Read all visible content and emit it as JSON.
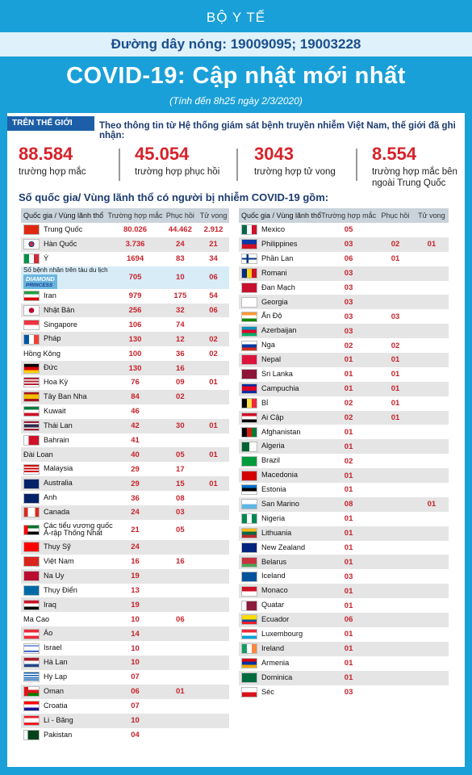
{
  "header": {
    "ministry": "BỘ Y TẾ",
    "hotline": "Đường dây nóng: 19009095; 19003228",
    "title": "COVID-19: Cập nhật mới nhất",
    "subtitle": "(Tính đến 8h25 ngày 2/3/2020)"
  },
  "world": {
    "tag": "TRÊN THẾ GIỚI",
    "intro": "Theo thông tin từ Hệ thống giám sát bệnh truyền nhiễm Việt Nam, thế giới đã ghi nhận:",
    "stats": [
      {
        "value": "88.584",
        "label": "trường hợp mắc"
      },
      {
        "value": "45.054",
        "label": "trường hợp  phục hồi"
      },
      {
        "value": "3043",
        "label": "trường hợp  tử vong"
      },
      {
        "value": "8.554",
        "label": "trường hợp  mắc bên ngoài Trung Quốc"
      }
    ],
    "countries_title": "Số quốc gia/ Vùng lãnh thổ có người bị nhiễm COVID-19 gồm:"
  },
  "table_headers": {
    "country": "Quốc gia / Vùng lãnh thổ",
    "cases": "Trường hợp mắc",
    "recovered": "Phục hồi",
    "deaths": "Tử vong"
  },
  "ship_logo": {
    "line1": "DIAMOND",
    "line2": "PRINCESS"
  },
  "colors": {
    "background": "#1aa0d8",
    "accent": "#d7222a",
    "header_band": "#dff1fa",
    "title_blue": "#1b3b6f"
  },
  "left_table": [
    {
      "name": "Trung Quốc",
      "cases": "80.026",
      "recovered": "44.462",
      "deaths": "2.912",
      "flag": "cn"
    },
    {
      "name": "Hàn Quốc",
      "cases": "3.736",
      "recovered": "24",
      "deaths": "21",
      "flag": "kr"
    },
    {
      "name": "Ý",
      "cases": "1694",
      "recovered": "83",
      "deaths": "34",
      "flag": "it"
    },
    {
      "name": "Số bệnh nhân trên tàu du lịch",
      "cases": "705",
      "recovered": "10",
      "deaths": "06",
      "flag": "ship"
    },
    {
      "name": "Iran",
      "cases": "979",
      "recovered": "175",
      "deaths": "54",
      "flag": "ir"
    },
    {
      "name": "Nhật Bản",
      "cases": "256",
      "recovered": "32",
      "deaths": "06",
      "flag": "jp"
    },
    {
      "name": "Singapore",
      "cases": "106",
      "recovered": "74",
      "deaths": "",
      "flag": "sg"
    },
    {
      "name": "Pháp",
      "cases": "130",
      "recovered": "12",
      "deaths": "02",
      "flag": "fr"
    },
    {
      "name": "Hồng Kông",
      "cases": "100",
      "recovered": "36",
      "deaths": "02",
      "flag": "none"
    },
    {
      "name": "Đức",
      "cases": "130",
      "recovered": "16",
      "deaths": "",
      "flag": "de"
    },
    {
      "name": "Hoa Kỳ",
      "cases": "76",
      "recovered": "09",
      "deaths": "01",
      "flag": "us"
    },
    {
      "name": "Tây Ban Nha",
      "cases": "84",
      "recovered": "02",
      "deaths": "",
      "flag": "es"
    },
    {
      "name": "Kuwait",
      "cases": "46",
      "recovered": "",
      "deaths": "",
      "flag": "kw"
    },
    {
      "name": "Thái Lan",
      "cases": "42",
      "recovered": "30",
      "deaths": "01",
      "flag": "th"
    },
    {
      "name": "Bahrain",
      "cases": "41",
      "recovered": "",
      "deaths": "",
      "flag": "bh"
    },
    {
      "name": "Đài Loan",
      "cases": "40",
      "recovered": "05",
      "deaths": "01",
      "flag": "none"
    },
    {
      "name": "Malaysia",
      "cases": "29",
      "recovered": "17",
      "deaths": "",
      "flag": "my"
    },
    {
      "name": "Australia",
      "cases": "29",
      "recovered": "15",
      "deaths": "01",
      "flag": "au"
    },
    {
      "name": "Anh",
      "cases": "36",
      "recovered": "08",
      "deaths": "",
      "flag": "gb"
    },
    {
      "name": "Canada",
      "cases": "24",
      "recovered": "03",
      "deaths": "",
      "flag": "ca"
    },
    {
      "name": "Các tiểu vương quốc Ả-rập Thống Nhất",
      "cases": "21",
      "recovered": "05",
      "deaths": "",
      "flag": "ae"
    },
    {
      "name": "Thụy Sỹ",
      "cases": "24",
      "recovered": "",
      "deaths": "",
      "flag": "ch"
    },
    {
      "name": "Việt Nam",
      "cases": "16",
      "recovered": "16",
      "deaths": "",
      "flag": "vn"
    },
    {
      "name": "Na Uy",
      "cases": "19",
      "recovered": "",
      "deaths": "",
      "flag": "no"
    },
    {
      "name": "Thụy Điển",
      "cases": "13",
      "recovered": "",
      "deaths": "",
      "flag": "se"
    },
    {
      "name": "Iraq",
      "cases": "19",
      "recovered": "",
      "deaths": "",
      "flag": "iq"
    },
    {
      "name": "Ma Cao",
      "cases": "10",
      "recovered": "06",
      "deaths": "",
      "flag": "none"
    },
    {
      "name": "Áo",
      "cases": "14",
      "recovered": "",
      "deaths": "",
      "flag": "at"
    },
    {
      "name": "Israel",
      "cases": "10",
      "recovered": "",
      "deaths": "",
      "flag": "il"
    },
    {
      "name": "Hà Lan",
      "cases": "10",
      "recovered": "",
      "deaths": "",
      "flag": "nl"
    },
    {
      "name": "Hy Lạp",
      "cases": "07",
      "recovered": "",
      "deaths": "",
      "flag": "gr"
    },
    {
      "name": "Oman",
      "cases": "06",
      "recovered": "01",
      "deaths": "",
      "flag": "om"
    },
    {
      "name": "Croatia",
      "cases": "07",
      "recovered": "",
      "deaths": "",
      "flag": "hr"
    },
    {
      "name": "Li - Băng",
      "cases": "10",
      "recovered": "",
      "deaths": "",
      "flag": "lb"
    },
    {
      "name": "Pakistan",
      "cases": "04",
      "recovered": "",
      "deaths": "",
      "flag": "pk"
    }
  ],
  "right_table": [
    {
      "name": "Mexico",
      "cases": "05",
      "recovered": "",
      "deaths": "",
      "flag": "mx"
    },
    {
      "name": "Philippines",
      "cases": "03",
      "recovered": "02",
      "deaths": "01",
      "flag": "ph"
    },
    {
      "name": "Phần Lan",
      "cases": "06",
      "recovered": "01",
      "deaths": "",
      "flag": "fi"
    },
    {
      "name": "Romani",
      "cases": "03",
      "recovered": "",
      "deaths": "",
      "flag": "ro"
    },
    {
      "name": "Đan Mạch",
      "cases": "03",
      "recovered": "",
      "deaths": "",
      "flag": "dk"
    },
    {
      "name": "Georgia",
      "cases": "03",
      "recovered": "",
      "deaths": "",
      "flag": "ge"
    },
    {
      "name": "Ấn Độ",
      "cases": "03",
      "recovered": "03",
      "deaths": "",
      "flag": "in"
    },
    {
      "name": "Azerbaijan",
      "cases": "03",
      "recovered": "",
      "deaths": "",
      "flag": "az"
    },
    {
      "name": "Nga",
      "cases": "02",
      "recovered": "02",
      "deaths": "",
      "flag": "ru"
    },
    {
      "name": "Nepal",
      "cases": "01",
      "recovered": "01",
      "deaths": "",
      "flag": "np"
    },
    {
      "name": "Sri Lanka",
      "cases": "01",
      "recovered": "01",
      "deaths": "",
      "flag": "lk"
    },
    {
      "name": "Campuchia",
      "cases": "01",
      "recovered": "01",
      "deaths": "",
      "flag": "kh"
    },
    {
      "name": "Bỉ",
      "cases": "02",
      "recovered": "01",
      "deaths": "",
      "flag": "be"
    },
    {
      "name": "Ai Cập",
      "cases": "02",
      "recovered": "01",
      "deaths": "",
      "flag": "eg"
    },
    {
      "name": "Afghanistan",
      "cases": "01",
      "recovered": "",
      "deaths": "",
      "flag": "af"
    },
    {
      "name": "Algeria",
      "cases": "01",
      "recovered": "",
      "deaths": "",
      "flag": "dz"
    },
    {
      "name": "Brazil",
      "cases": "02",
      "recovered": "",
      "deaths": "",
      "flag": "br"
    },
    {
      "name": "Macedonia",
      "cases": "01",
      "recovered": "",
      "deaths": "",
      "flag": "mk"
    },
    {
      "name": "Estonia",
      "cases": "01",
      "recovered": "",
      "deaths": "",
      "flag": "ee"
    },
    {
      "name": "San Marino",
      "cases": "08",
      "recovered": "",
      "deaths": "01",
      "flag": "sm"
    },
    {
      "name": "Nigeria",
      "cases": "01",
      "recovered": "",
      "deaths": "",
      "flag": "ng"
    },
    {
      "name": "Lithuania",
      "cases": "01",
      "recovered": "",
      "deaths": "",
      "flag": "lt"
    },
    {
      "name": "New Zealand",
      "cases": "01",
      "recovered": "",
      "deaths": "",
      "flag": "nz"
    },
    {
      "name": "Belarus",
      "cases": "01",
      "recovered": "",
      "deaths": "",
      "flag": "by"
    },
    {
      "name": "Iceland",
      "cases": "03",
      "recovered": "",
      "deaths": "",
      "flag": "is"
    },
    {
      "name": "Monaco",
      "cases": "01",
      "recovered": "",
      "deaths": "",
      "flag": "mc"
    },
    {
      "name": "Quatar",
      "cases": "01",
      "recovered": "",
      "deaths": "",
      "flag": "qa"
    },
    {
      "name": "Ecuador",
      "cases": "06",
      "recovered": "",
      "deaths": "",
      "flag": "ec"
    },
    {
      "name": "Luxembourg",
      "cases": "01",
      "recovered": "",
      "deaths": "",
      "flag": "lu"
    },
    {
      "name": "Ireland",
      "cases": "01",
      "recovered": "",
      "deaths": "",
      "flag": "ie"
    },
    {
      "name": "Armenia",
      "cases": "01",
      "recovered": "",
      "deaths": "",
      "flag": "am"
    },
    {
      "name": "Dominica",
      "cases": "01",
      "recovered": "",
      "deaths": "",
      "flag": "do"
    },
    {
      "name": "Séc",
      "cases": "03",
      "recovered": "",
      "deaths": "",
      "flag": "cz"
    }
  ]
}
